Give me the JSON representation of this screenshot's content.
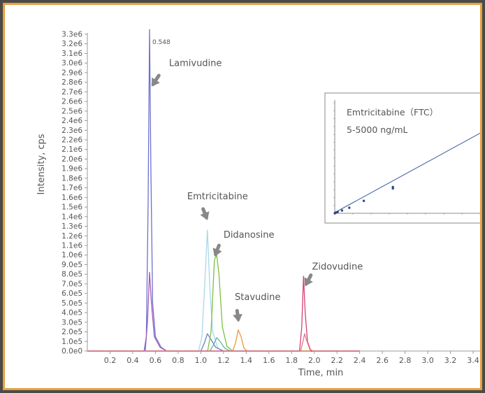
{
  "chart_data": {
    "type": "line",
    "xlabel": "Time, min",
    "ylabel": "Intensity, cps",
    "xlim": [
      0.0,
      3.4
    ],
    "ylim": [
      0,
      3300000
    ],
    "x_ticks": [
      "0.2",
      "0.4",
      "0.6",
      "0.8",
      "1.0",
      "1.2",
      "1.4",
      "1.6",
      "1.8",
      "2.0",
      "2.2",
      "2.4",
      "2.6",
      "2.8",
      "3.0",
      "3.2",
      "3.4"
    ],
    "y_ticks": [
      "0.0e0",
      "1.0e5",
      "2.0e5",
      "3.0e5",
      "4.0e5",
      "5.0e5",
      "6.0e5",
      "7.0e5",
      "8.0e5",
      "9.0e5",
      "1.0e6",
      "1.1e6",
      "1.2e6",
      "1.3e6",
      "1.4e6",
      "1.5e6",
      "1.6e6",
      "1.7e6",
      "1.8e6",
      "1.9e6",
      "2.0e6",
      "2.1e6",
      "2.2e6",
      "2.3e6",
      "2.4e6",
      "2.5e6",
      "2.6e6",
      "2.7e6",
      "2.8e6",
      "2.9e6",
      "3.0e6",
      "3.1e6",
      "3.2e6",
      "3.3e6"
    ],
    "peak_label": "0.548",
    "series": [
      {
        "name": "Lamivudine",
        "color": "#6f6fcf",
        "points": [
          [
            0.0,
            0
          ],
          [
            0.5,
            0
          ],
          [
            0.52,
            150000
          ],
          [
            0.535,
            1500000
          ],
          [
            0.548,
            3350000
          ],
          [
            0.56,
            1900000
          ],
          [
            0.575,
            500000
          ],
          [
            0.6,
            150000
          ],
          [
            0.65,
            40000
          ],
          [
            0.7,
            0
          ],
          [
            2.4,
            0
          ]
        ]
      },
      {
        "name": "Lamivudine",
        "color": "#a25bb8",
        "points": [
          [
            0.0,
            0
          ],
          [
            0.51,
            0
          ],
          [
            0.53,
            300000
          ],
          [
            0.548,
            820000
          ],
          [
            0.565,
            500000
          ],
          [
            0.59,
            150000
          ],
          [
            0.64,
            40000
          ],
          [
            0.7,
            0
          ],
          [
            2.4,
            0
          ]
        ]
      },
      {
        "name": "Emtricitabine",
        "color": "#a8d8ea",
        "points": [
          [
            0.0,
            0
          ],
          [
            0.98,
            0
          ],
          [
            1.01,
            150000
          ],
          [
            1.035,
            700000
          ],
          [
            1.058,
            1260000
          ],
          [
            1.08,
            650000
          ],
          [
            1.105,
            200000
          ],
          [
            1.15,
            30000
          ],
          [
            1.2,
            0
          ],
          [
            2.4,
            0
          ]
        ]
      },
      {
        "name": "Emtricitabine",
        "color": "#6d7fc8",
        "points": [
          [
            0.0,
            0
          ],
          [
            1.0,
            0
          ],
          [
            1.03,
            80000
          ],
          [
            1.058,
            180000
          ],
          [
            1.09,
            120000
          ],
          [
            1.13,
            40000
          ],
          [
            1.2,
            0
          ],
          [
            2.4,
            0
          ]
        ]
      },
      {
        "name": "Didanosine",
        "color": "#7bc043",
        "points": [
          [
            0.0,
            0
          ],
          [
            1.06,
            0
          ],
          [
            1.09,
            200000
          ],
          [
            1.12,
            950000
          ],
          [
            1.14,
            1000000
          ],
          [
            1.16,
            800000
          ],
          [
            1.19,
            250000
          ],
          [
            1.23,
            50000
          ],
          [
            1.28,
            0
          ],
          [
            2.4,
            0
          ]
        ]
      },
      {
        "name": "Didanosine",
        "color": "#5fb89a",
        "points": [
          [
            0.0,
            0
          ],
          [
            1.08,
            0
          ],
          [
            1.11,
            60000
          ],
          [
            1.14,
            140000
          ],
          [
            1.17,
            100000
          ],
          [
            1.21,
            30000
          ],
          [
            1.26,
            0
          ],
          [
            2.4,
            0
          ]
        ]
      },
      {
        "name": "Stavudine",
        "color": "#f0973a",
        "points": [
          [
            0.0,
            0
          ],
          [
            1.28,
            0
          ],
          [
            1.305,
            80000
          ],
          [
            1.33,
            220000
          ],
          [
            1.355,
            150000
          ],
          [
            1.38,
            30000
          ],
          [
            1.41,
            0
          ],
          [
            2.4,
            0
          ]
        ]
      },
      {
        "name": "Zidovudine",
        "color": "#d6407a",
        "points": [
          [
            0.0,
            0
          ],
          [
            1.87,
            0
          ],
          [
            1.89,
            250000
          ],
          [
            1.905,
            780000
          ],
          [
            1.92,
            400000
          ],
          [
            1.94,
            100000
          ],
          [
            1.97,
            0
          ],
          [
            2.4,
            0
          ]
        ]
      },
      {
        "name": "Zidovudine",
        "color": "#e07a8a",
        "points": [
          [
            0.0,
            0
          ],
          [
            1.88,
            0
          ],
          [
            1.9,
            100000
          ],
          [
            1.915,
            180000
          ],
          [
            1.93,
            120000
          ],
          [
            1.96,
            20000
          ],
          [
            1.99,
            0
          ],
          [
            2.4,
            0
          ]
        ]
      }
    ],
    "annotations": [
      {
        "text": "Lamivudine",
        "x": 0.72,
        "y": 2970000,
        "arrow_x": 0.58,
        "arrow_y": 2780000
      },
      {
        "text": "Emtricitabine",
        "x": 0.88,
        "y": 1580000,
        "arrow_x": 1.05,
        "arrow_y": 1380000
      },
      {
        "text": "Didanosine",
        "x": 1.2,
        "y": 1180000,
        "arrow_x": 1.13,
        "arrow_y": 1000000
      },
      {
        "text": "Stavudine",
        "x": 1.3,
        "y": 530000,
        "arrow_x": 1.32,
        "arrow_y": 330000
      },
      {
        "text": "Zidovudine",
        "x": 1.98,
        "y": 850000,
        "arrow_x": 1.92,
        "arrow_y": 700000
      }
    ],
    "inset": {
      "title_line1": "Emtricitabine（FTC）",
      "title_line2": "5-5000 ng/mL",
      "type": "scatter",
      "fit_line": "linear",
      "xlim": [
        0,
        5000
      ],
      "points": [
        [
          5,
          0
        ],
        [
          10,
          0.01
        ],
        [
          25,
          0.02
        ],
        [
          50,
          0.03
        ],
        [
          100,
          0.05
        ],
        [
          250,
          0.1
        ],
        [
          500,
          0.2
        ],
        [
          1000,
          0.45
        ],
        [
          2000,
          0.9
        ],
        [
          2000,
          0.95
        ]
      ]
    }
  }
}
